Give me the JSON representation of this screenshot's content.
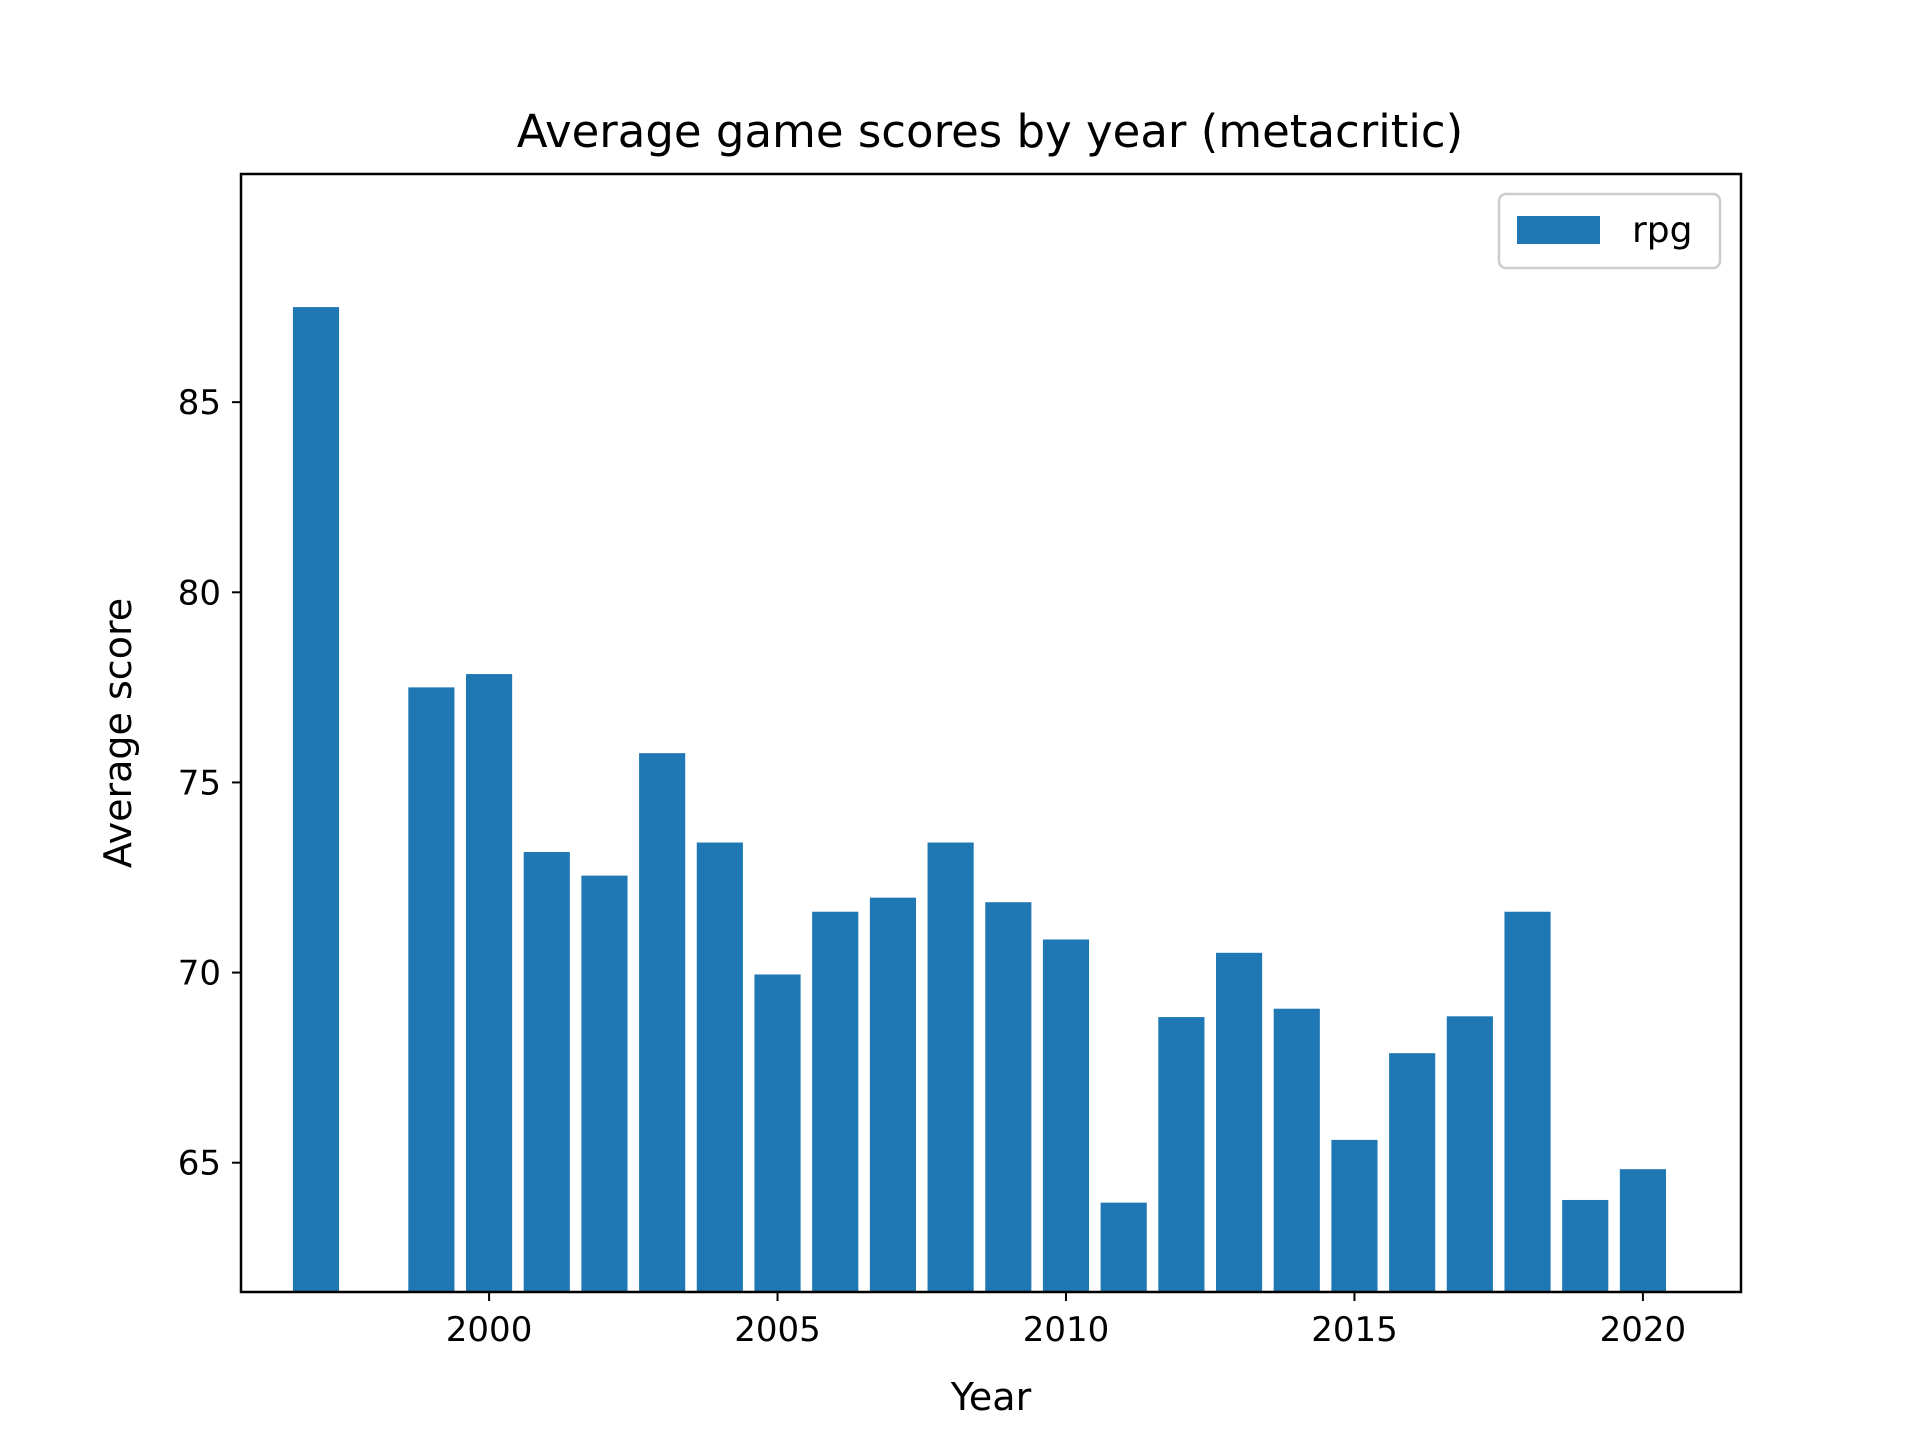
{
  "chart_data": {
    "type": "bar",
    "title": "Average game scores by year (metacritic)",
    "xlabel": "Year",
    "ylabel": "Average score",
    "x": [
      1997,
      1999,
      2000,
      2001,
      2002,
      2003,
      2004,
      2005,
      2006,
      2007,
      2008,
      2009,
      2010,
      2011,
      2012,
      2013,
      2014,
      2015,
      2016,
      2017,
      2018,
      2019,
      2020
    ],
    "series": [
      {
        "name": "rpg",
        "color": "#1f77b4",
        "values": [
          87.5,
          77.5,
          77.85,
          73.17,
          72.55,
          75.77,
          73.42,
          69.95,
          71.6,
          71.97,
          73.42,
          71.85,
          70.87,
          63.95,
          68.83,
          70.52,
          69.05,
          65.6,
          67.88,
          68.85,
          71.6,
          64.02,
          64.83
        ]
      }
    ],
    "xlim": [
      1995.7,
      2021.7
    ],
    "ylim": [
      61.6,
      91.0
    ],
    "xticks": [
      2000,
      2005,
      2010,
      2015,
      2020
    ],
    "yticks": [
      65,
      70,
      75,
      80,
      85
    ],
    "legend_position": "top-right",
    "grid": false
  }
}
